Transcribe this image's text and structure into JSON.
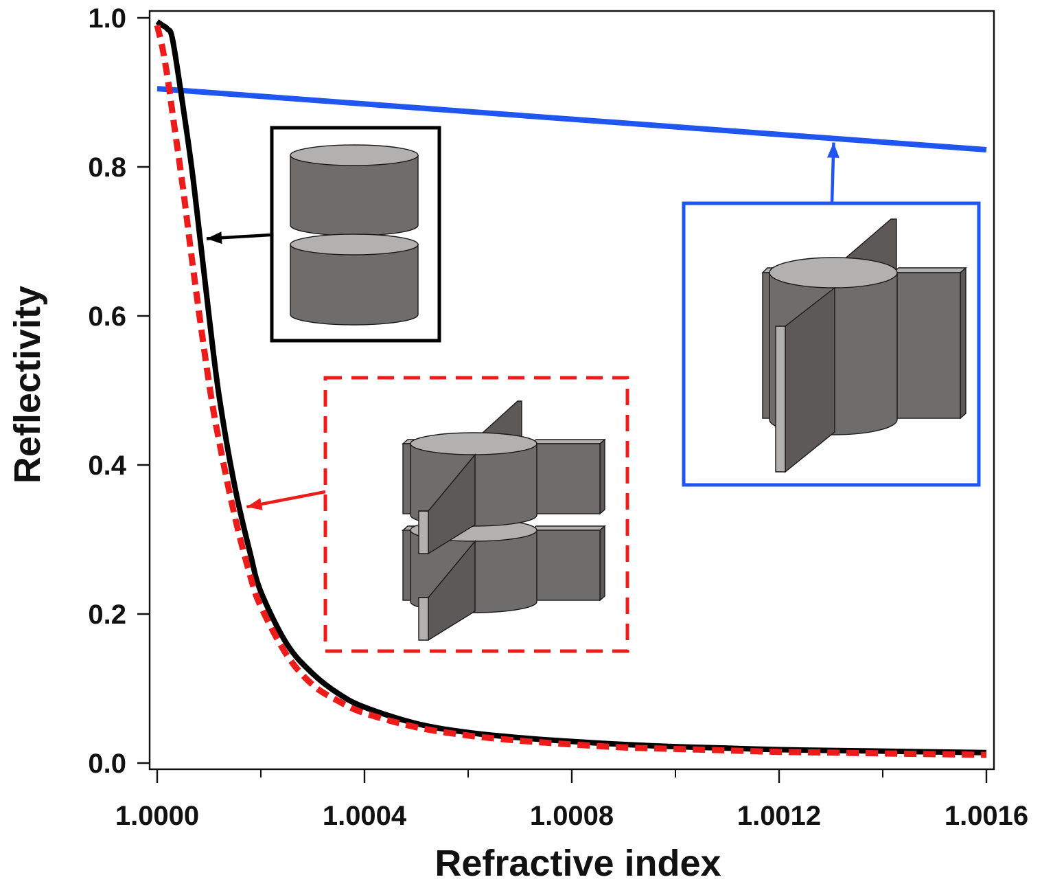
{
  "chart_data": {
    "type": "line",
    "title": "",
    "xlabel": "Refractive index",
    "ylabel": "Reflectivity",
    "xlim": [
      1.0,
      1.0016
    ],
    "ylim": [
      0.0,
      1.0
    ],
    "x_ticks": [
      {
        "value": 1.0,
        "label": "1.0000"
      },
      {
        "value": 1.0004,
        "label": "1.0004"
      },
      {
        "value": 1.0008,
        "label": "1.0008"
      },
      {
        "value": 1.0012,
        "label": "1.0012"
      },
      {
        "value": 1.0016,
        "label": "1.0016"
      }
    ],
    "x_minor_ticks": [
      1.0002,
      1.0006,
      1.001,
      1.0014
    ],
    "y_ticks": [
      {
        "value": 0.0,
        "label": "0.0"
      },
      {
        "value": 0.2,
        "label": "0.2"
      },
      {
        "value": 0.4,
        "label": "0.4"
      },
      {
        "value": 0.6,
        "label": "0.6"
      },
      {
        "value": 0.8,
        "label": "0.8"
      },
      {
        "value": 1.0,
        "label": "1.0"
      }
    ],
    "grid": false,
    "series": [
      {
        "name": "Stacked cylinders",
        "color": "#000000",
        "style": "solid",
        "x": [
          1.0,
          1.00001,
          1.00002,
          1.00003,
          1.00005,
          1.00007,
          1.0001,
          1.00012,
          1.00015,
          1.00018,
          1.0002,
          1.00025,
          1.0003,
          1.00035,
          1.0004,
          1.0005,
          1.0006,
          1.0007,
          1.0008,
          1.0009,
          1.001,
          1.0011,
          1.0012,
          1.0013,
          1.0014,
          1.0015,
          1.0016
        ],
        "y": [
          0.995,
          0.99,
          0.985,
          0.97,
          0.88,
          0.78,
          0.6,
          0.49,
          0.37,
          0.28,
          0.23,
          0.16,
          0.12,
          0.093,
          0.075,
          0.053,
          0.041,
          0.034,
          0.029,
          0.025,
          0.022,
          0.02,
          0.018,
          0.017,
          0.016,
          0.015,
          0.014
        ]
      },
      {
        "name": "Stacked cylinders with fins",
        "color": "#ee1b1b",
        "style": "dashed",
        "x": [
          1.0,
          1.00001,
          1.00002,
          1.00003,
          1.00005,
          1.00007,
          1.0001,
          1.00012,
          1.00015,
          1.00018,
          1.0002,
          1.00025,
          1.0003,
          1.00035,
          1.0004,
          1.0005,
          1.0006,
          1.0007,
          1.0008,
          1.0009,
          1.001,
          1.0011,
          1.0012,
          1.0013,
          1.0014,
          1.0015,
          1.0016
        ],
        "y": [
          0.99,
          0.96,
          0.92,
          0.87,
          0.77,
          0.66,
          0.51,
          0.43,
          0.33,
          0.25,
          0.21,
          0.145,
          0.105,
          0.083,
          0.067,
          0.048,
          0.037,
          0.03,
          0.025,
          0.021,
          0.019,
          0.017,
          0.015,
          0.014,
          0.013,
          0.012,
          0.011
        ]
      },
      {
        "name": "Single cylinder with fins",
        "color": "#1f55f0",
        "style": "solid",
        "x": [
          1.0,
          1.0016
        ],
        "y": [
          0.905,
          0.823
        ]
      }
    ],
    "insets": [
      {
        "name": "stacked-cylinders",
        "border": "#000000",
        "style": "solid",
        "points_to_x": 1.00009,
        "points_to_y": 0.7
      },
      {
        "name": "stacked-finned-cylinders",
        "border": "#ee1b1b",
        "style": "dashed",
        "points_to_x": 1.00017,
        "points_to_y": 0.34
      },
      {
        "name": "single-finned-cylinder",
        "border": "#1f55f0",
        "style": "solid",
        "points_to_x": 1.0013,
        "points_to_y": 0.84
      }
    ]
  }
}
